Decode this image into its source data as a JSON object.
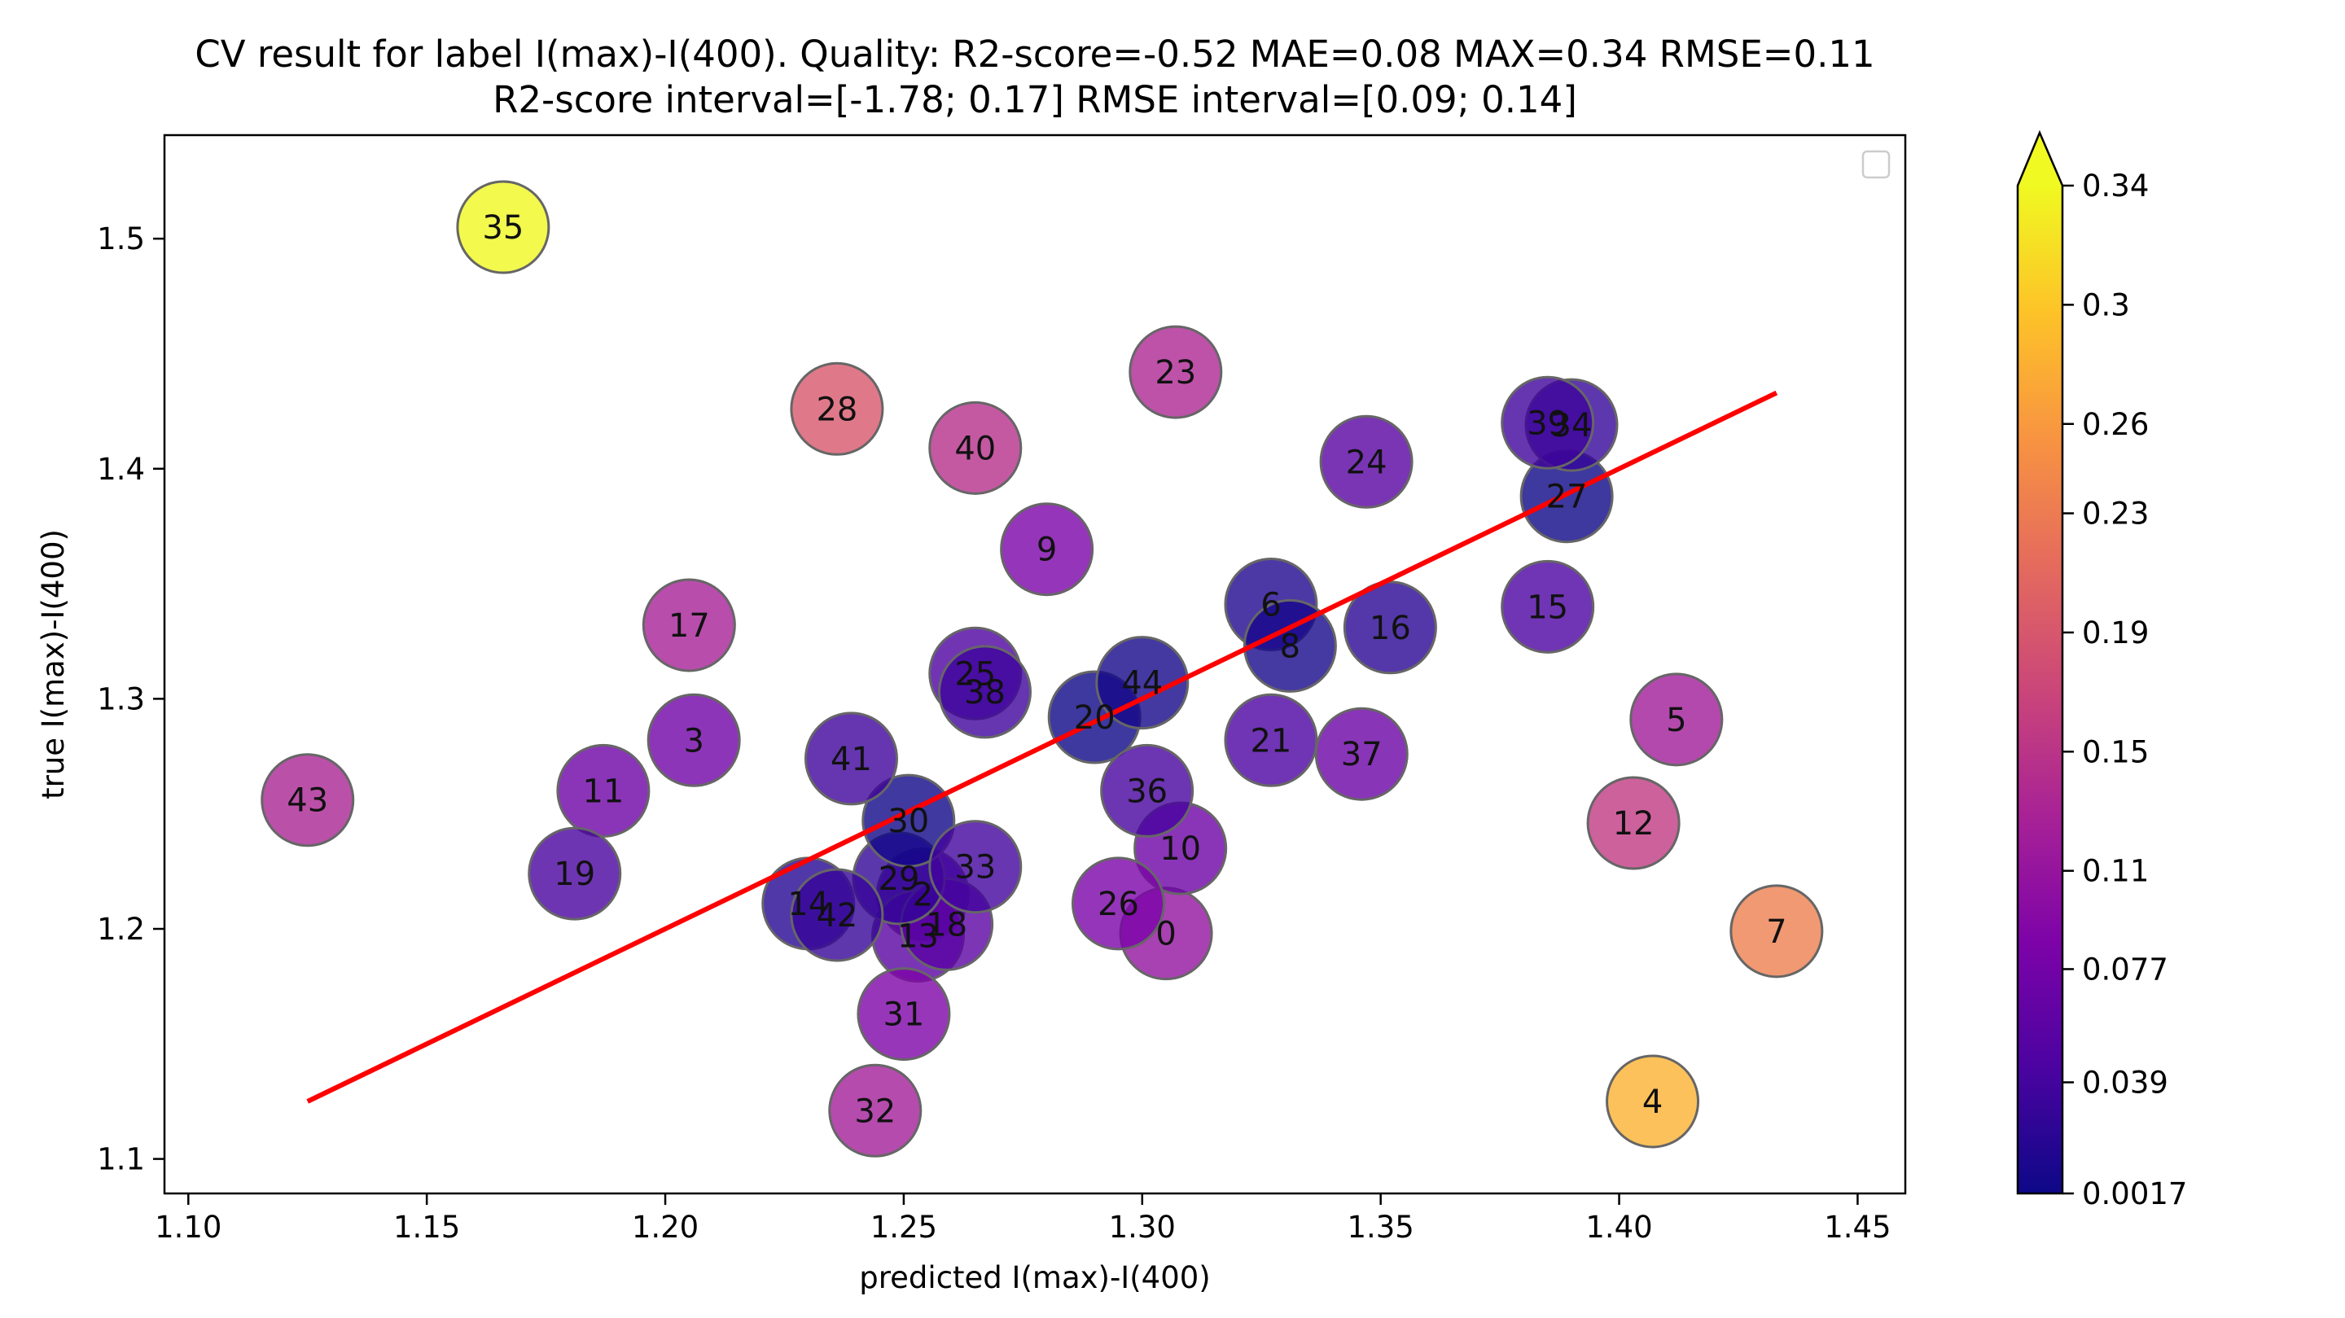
{
  "chart_data": {
    "type": "scatter",
    "title_line1": "CV result for label I(max)-I(400). Quality: R2-score=-0.52 MAE=0.08 MAX=0.34 RMSE=0.11",
    "title_line2": "R2-score interval=[-1.78; 0.17] RMSE interval=[0.09; 0.14]",
    "xlabel": "predicted I(max)-I(400)",
    "ylabel": "true I(max)-I(400)",
    "xlim": [
      1.095,
      1.46
    ],
    "ylim": [
      1.085,
      1.545
    ],
    "x_ticks": [
      "1.10",
      "1.15",
      "1.20",
      "1.25",
      "1.30",
      "1.35",
      "1.40",
      "1.45"
    ],
    "y_ticks": [
      "1.1",
      "1.2",
      "1.3",
      "1.4",
      "1.5"
    ],
    "colormap": "plasma",
    "colorbar": {
      "min": 0.0017,
      "max": 0.34,
      "ticks": [
        "0.0017",
        "0.039",
        "0.077",
        "0.11",
        "0.15",
        "0.19",
        "0.23",
        "0.26",
        "0.3",
        "0.34"
      ],
      "extend": "max"
    },
    "legend": "top-right",
    "fit_line": {
      "color": "#ff0000",
      "x": [
        1.125,
        1.433
      ],
      "y": [
        1.125,
        1.433
      ]
    },
    "points": [
      {
        "label": "0",
        "x": 1.305,
        "y": 1.198,
        "error": 0.107
      },
      {
        "label": "2",
        "x": 1.254,
        "y": 1.215,
        "error": 0.039
      },
      {
        "label": "3",
        "x": 1.206,
        "y": 1.282,
        "error": 0.076
      },
      {
        "label": "4",
        "x": 1.407,
        "y": 1.125,
        "error": 0.282
      },
      {
        "label": "5",
        "x": 1.412,
        "y": 1.291,
        "error": 0.121
      },
      {
        "label": "6",
        "x": 1.327,
        "y": 1.341,
        "error": 0.014
      },
      {
        "label": "7",
        "x": 1.433,
        "y": 1.199,
        "error": 0.234
      },
      {
        "label": "8",
        "x": 1.331,
        "y": 1.323,
        "error": 0.008
      },
      {
        "label": "9",
        "x": 1.28,
        "y": 1.365,
        "error": 0.085
      },
      {
        "label": "10",
        "x": 1.308,
        "y": 1.235,
        "error": 0.073
      },
      {
        "label": "11",
        "x": 1.187,
        "y": 1.26,
        "error": 0.073
      },
      {
        "label": "12",
        "x": 1.403,
        "y": 1.246,
        "error": 0.157
      },
      {
        "label": "13",
        "x": 1.253,
        "y": 1.197,
        "error": 0.056
      },
      {
        "label": "14",
        "x": 1.23,
        "y": 1.211,
        "error": 0.019
      },
      {
        "label": "15",
        "x": 1.385,
        "y": 1.34,
        "error": 0.045
      },
      {
        "label": "16",
        "x": 1.352,
        "y": 1.331,
        "error": 0.021
      },
      {
        "label": "17",
        "x": 1.205,
        "y": 1.332,
        "error": 0.127
      },
      {
        "label": "18",
        "x": 1.259,
        "y": 1.202,
        "error": 0.057
      },
      {
        "label": "19",
        "x": 1.181,
        "y": 1.224,
        "error": 0.043
      },
      {
        "label": "20",
        "x": 1.29,
        "y": 1.292,
        "error": 0.002
      },
      {
        "label": "21",
        "x": 1.327,
        "y": 1.282,
        "error": 0.045
      },
      {
        "label": "23",
        "x": 1.307,
        "y": 1.442,
        "error": 0.135
      },
      {
        "label": "24",
        "x": 1.347,
        "y": 1.403,
        "error": 0.056
      },
      {
        "label": "25",
        "x": 1.265,
        "y": 1.311,
        "error": 0.046
      },
      {
        "label": "26",
        "x": 1.295,
        "y": 1.211,
        "error": 0.084
      },
      {
        "label": "27",
        "x": 1.389,
        "y": 1.388,
        "error": 0.001
      },
      {
        "label": "28",
        "x": 1.236,
        "y": 1.426,
        "error": 0.19
      },
      {
        "label": "29",
        "x": 1.249,
        "y": 1.222,
        "error": 0.027
      },
      {
        "label": "30",
        "x": 1.251,
        "y": 1.247,
        "error": 0.004
      },
      {
        "label": "31",
        "x": 1.25,
        "y": 1.163,
        "error": 0.087
      },
      {
        "label": "32",
        "x": 1.244,
        "y": 1.121,
        "error": 0.123
      },
      {
        "label": "33",
        "x": 1.265,
        "y": 1.227,
        "error": 0.038
      },
      {
        "label": "34",
        "x": 1.39,
        "y": 1.419,
        "error": 0.029
      },
      {
        "label": "35",
        "x": 1.166,
        "y": 1.505,
        "error": 0.339
      },
      {
        "label": "36",
        "x": 1.301,
        "y": 1.26,
        "error": 0.041
      },
      {
        "label": "37",
        "x": 1.346,
        "y": 1.276,
        "error": 0.07
      },
      {
        "label": "38",
        "x": 1.267,
        "y": 1.303,
        "error": 0.036
      },
      {
        "label": "39",
        "x": 1.385,
        "y": 1.42,
        "error": 0.035
      },
      {
        "label": "40",
        "x": 1.265,
        "y": 1.409,
        "error": 0.144
      },
      {
        "label": "41",
        "x": 1.239,
        "y": 1.274,
        "error": 0.035
      },
      {
        "label": "42",
        "x": 1.236,
        "y": 1.206,
        "error": 0.03
      },
      {
        "label": "43",
        "x": 1.125,
        "y": 1.256,
        "error": 0.131
      },
      {
        "label": "44",
        "x": 1.3,
        "y": 1.307,
        "error": 0.007
      }
    ]
  }
}
